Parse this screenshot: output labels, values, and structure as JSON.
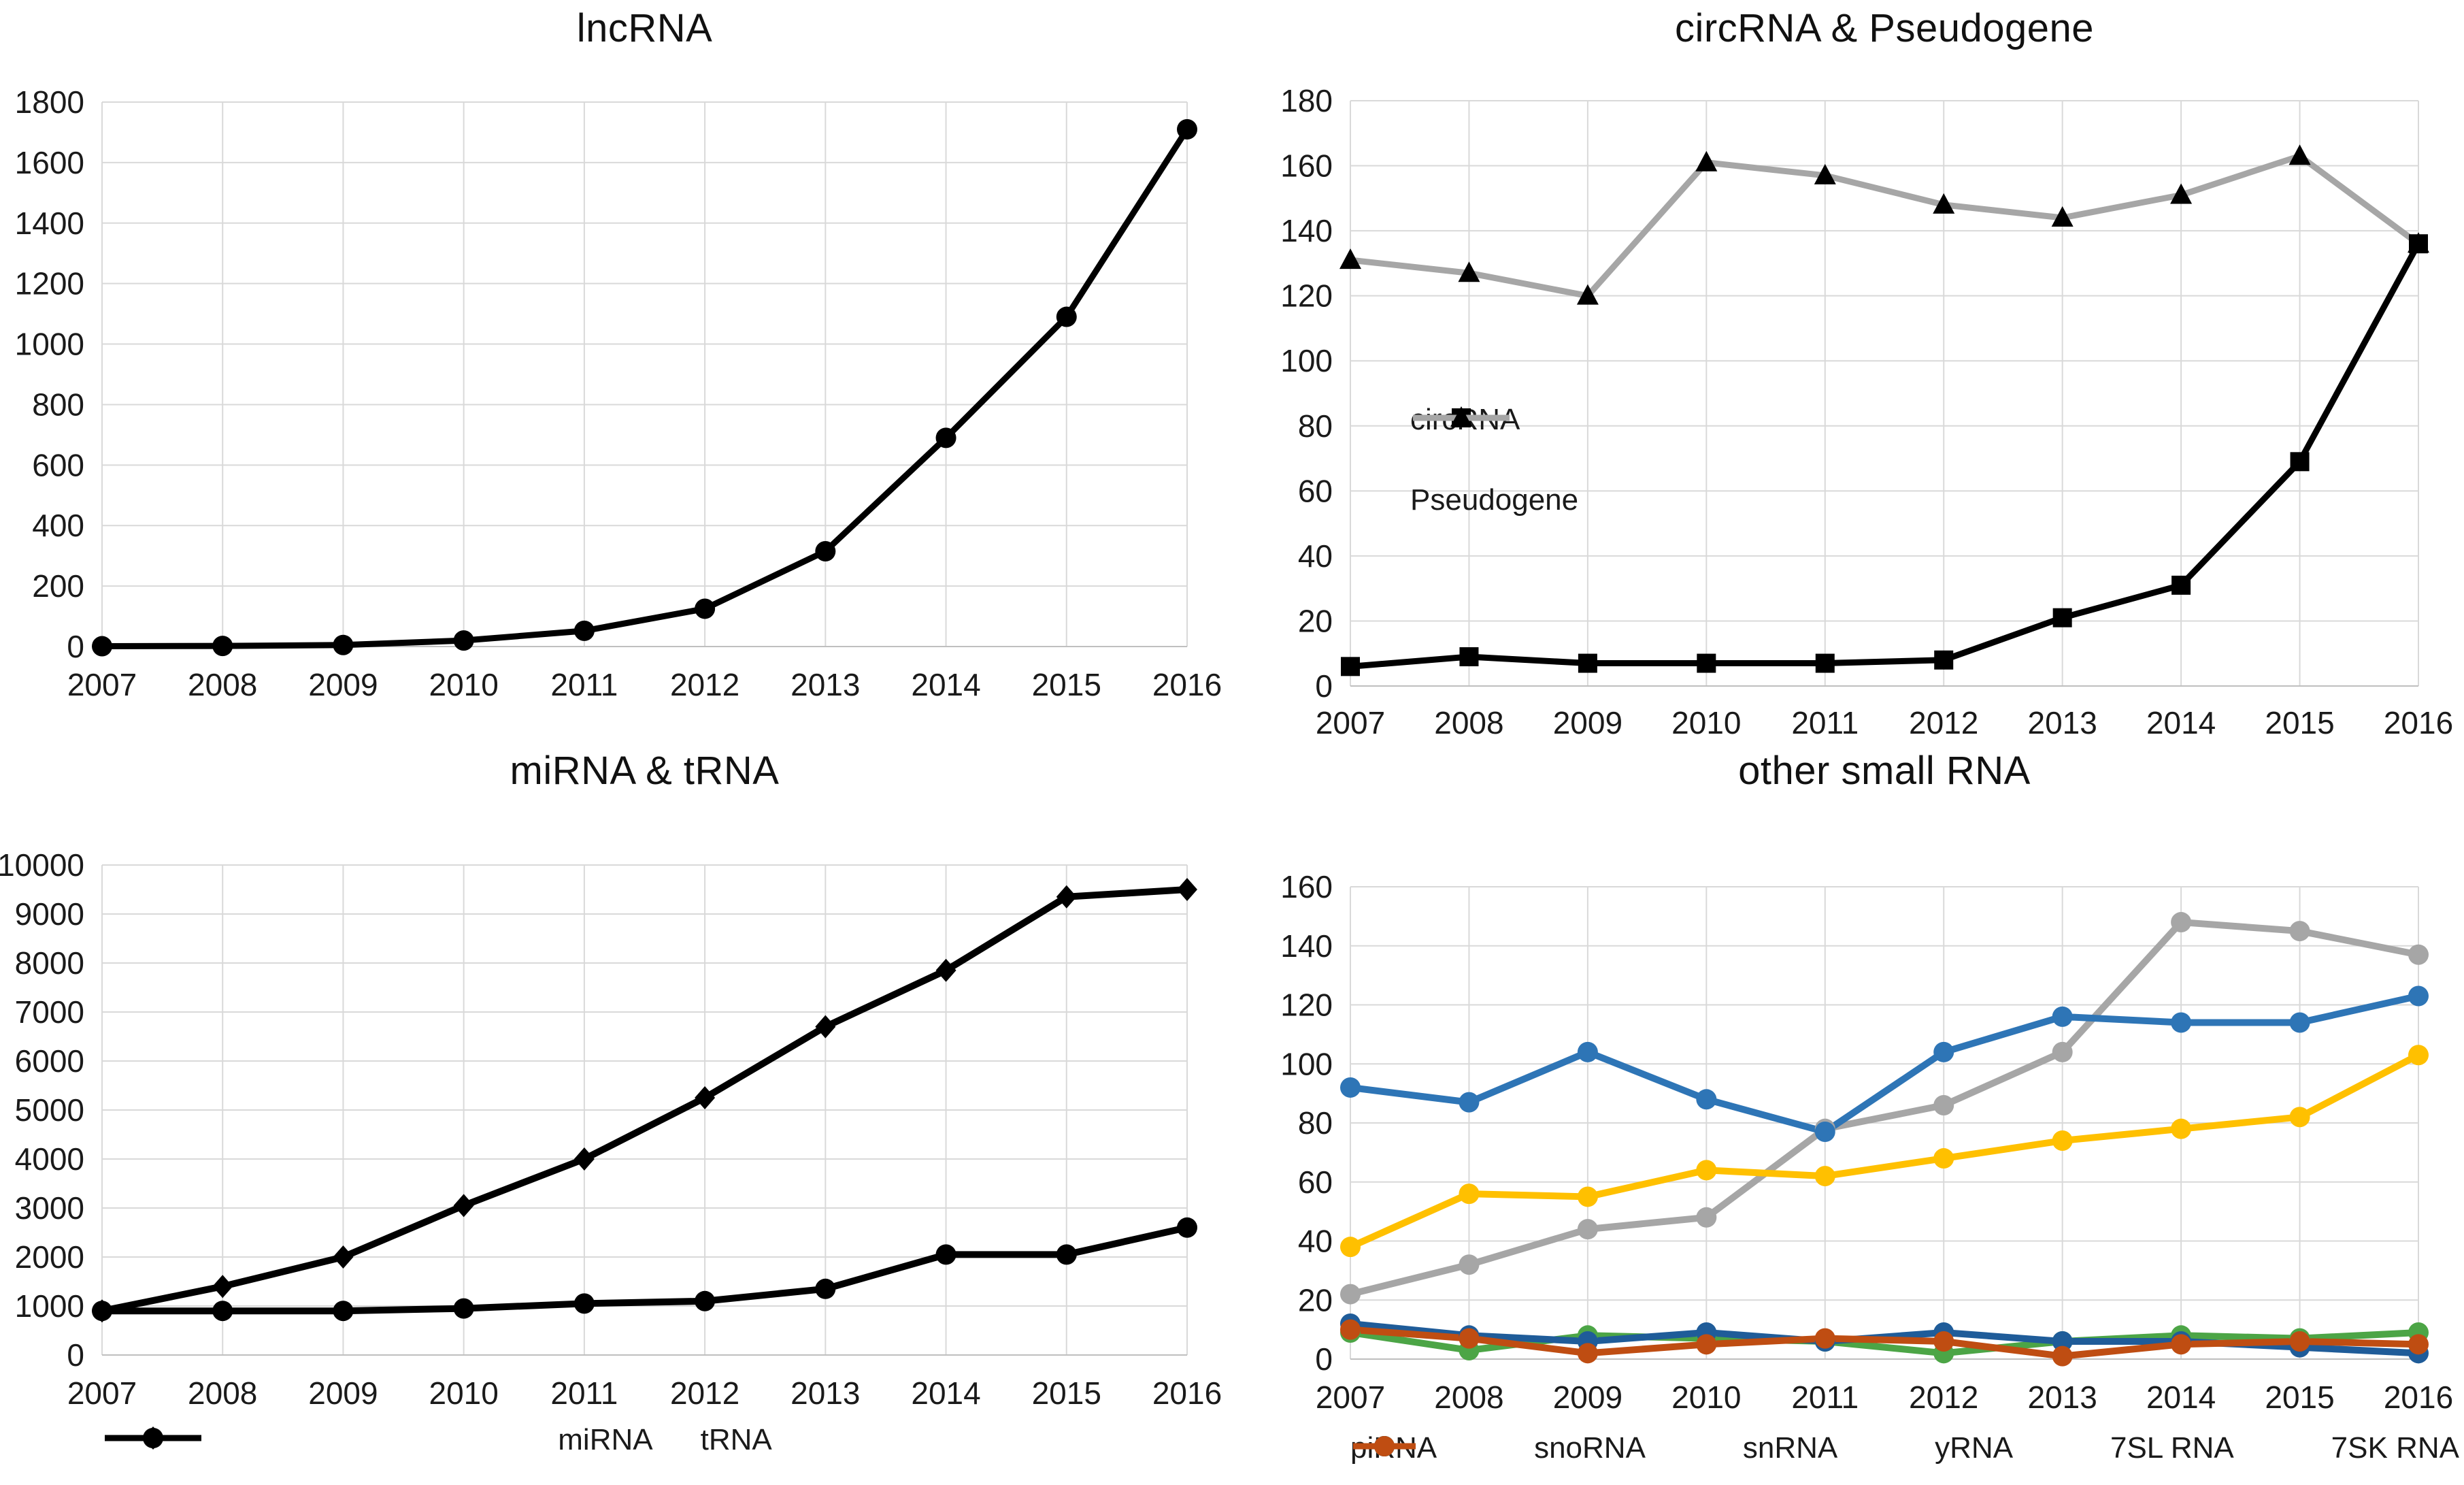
{
  "page": {
    "background": "#FFFFFF"
  },
  "chart_data": [
    {
      "id": "lncrna",
      "type": "line",
      "title": "lncRNA",
      "x": [
        "2007",
        "2008",
        "2009",
        "2010",
        "2011",
        "2012",
        "2013",
        "2014",
        "2015",
        "2016"
      ],
      "ylim": [
        0,
        1800
      ],
      "ytick_step": 200,
      "grid": true,
      "legend_position": "none",
      "series": [
        {
          "name": "lncRNA",
          "color": "#000000",
          "marker": "circle",
          "values": [
            1,
            2,
            5,
            20,
            52,
            125,
            315,
            690,
            1090,
            1710
          ]
        }
      ],
      "legend_items": []
    },
    {
      "id": "circrna-pseudogene",
      "type": "line",
      "title": "circRNA & Pseudogene",
      "x": [
        "2007",
        "2008",
        "2009",
        "2010",
        "2011",
        "2012",
        "2013",
        "2014",
        "2015",
        "2016"
      ],
      "ylim": [
        0,
        180
      ],
      "ytick_step": 20,
      "grid": true,
      "legend_position": "inside-left",
      "series": [
        {
          "name": "Pseudogene",
          "color": "#A6A6A6",
          "marker": "triangle",
          "marker_color": "#000000",
          "values": [
            131,
            127,
            120,
            161,
            157,
            148,
            144,
            151,
            163,
            136
          ]
        },
        {
          "name": "circRNA",
          "color": "#000000",
          "marker": "square",
          "marker_color": "#000000",
          "values": [
            6,
            9,
            7,
            7,
            7,
            8,
            21,
            31,
            69,
            136
          ]
        }
      ],
      "legend_items": [
        {
          "label": "circRNA",
          "color": "#000000",
          "marker": "square",
          "marker_color": "#000000"
        },
        {
          "label": "Pseudogene",
          "color": "#A6A6A6",
          "marker": "triangle",
          "marker_color": "#000000"
        }
      ]
    },
    {
      "id": "mirna-trna",
      "type": "line",
      "title": "miRNA & tRNA",
      "x": [
        "2007",
        "2008",
        "2009",
        "2010",
        "2011",
        "2012",
        "2013",
        "2014",
        "2015",
        "2016"
      ],
      "ylim": [
        0,
        10000
      ],
      "ytick_step": 1000,
      "grid": true,
      "legend_position": "below",
      "series": [
        {
          "name": "miRNA",
          "color": "#000000",
          "marker": "diamond",
          "values": [
            900,
            1400,
            2000,
            3050,
            4000,
            5250,
            6700,
            7850,
            9350,
            9500
          ]
        },
        {
          "name": "tRNA",
          "color": "#000000",
          "marker": "circle",
          "values": [
            900,
            900,
            900,
            950,
            1050,
            1100,
            1350,
            2050,
            2050,
            2600
          ]
        }
      ],
      "legend_items": [
        {
          "label": "miRNA",
          "color": "#000000",
          "marker": "diamond",
          "marker_color": "#000000"
        },
        {
          "label": "tRNA",
          "color": "#000000",
          "marker": "circle",
          "marker_color": "#000000"
        }
      ]
    },
    {
      "id": "other-small-rna",
      "type": "line",
      "title": "other small RNA",
      "x": [
        "2007",
        "2008",
        "2009",
        "2010",
        "2011",
        "2012",
        "2013",
        "2014",
        "2015",
        "2016"
      ],
      "ylim": [
        0,
        160
      ],
      "ytick_step": 20,
      "grid": true,
      "legend_position": "below",
      "series": [
        {
          "name": "piRNA",
          "color": "#A6A6A6",
          "marker": "circle",
          "values": [
            22,
            32,
            44,
            48,
            78,
            86,
            104,
            148,
            145,
            137
          ]
        },
        {
          "name": "snoRNA",
          "color": "#FFC000",
          "marker": "circle",
          "values": [
            38,
            56,
            55,
            64,
            62,
            68,
            74,
            78,
            82,
            103
          ]
        },
        {
          "name": "snRNA",
          "color": "#2E75B6",
          "marker": "circle",
          "values": [
            92,
            87,
            104,
            88,
            77,
            104,
            116,
            114,
            114,
            123
          ]
        },
        {
          "name": "yRNA",
          "color": "#4CA546",
          "marker": "circle",
          "values": [
            9,
            3,
            8,
            7,
            6,
            2,
            6,
            8,
            7,
            9
          ]
        },
        {
          "name": "7SL RNA",
          "color": "#1F5C99",
          "marker": "circle",
          "values": [
            12,
            8,
            6,
            9,
            6,
            9,
            6,
            6,
            4,
            2
          ]
        },
        {
          "name": "7SK RNA",
          "color": "#BF4D12",
          "marker": "circle",
          "values": [
            10,
            7,
            2,
            5,
            7,
            6,
            1,
            5,
            6,
            5
          ]
        }
      ],
      "legend_items": [
        {
          "label": "piRNA",
          "color": "#A6A6A6",
          "marker": "circle",
          "marker_color": "#A6A6A6"
        },
        {
          "label": "snoRNA",
          "color": "#FFC000",
          "marker": "circle",
          "marker_color": "#FFC000"
        },
        {
          "label": "snRNA",
          "color": "#2E75B6",
          "marker": "circle",
          "marker_color": "#2E75B6"
        },
        {
          "label": "yRNA",
          "color": "#4CA546",
          "marker": "circle",
          "marker_color": "#4CA546"
        },
        {
          "label": "7SL RNA",
          "color": "#1F5C99",
          "marker": "circle",
          "marker_color": "#1F5C99"
        },
        {
          "label": "7SK RNA",
          "color": "#BF4D12",
          "marker": "circle",
          "marker_color": "#BF4D12"
        }
      ]
    }
  ]
}
